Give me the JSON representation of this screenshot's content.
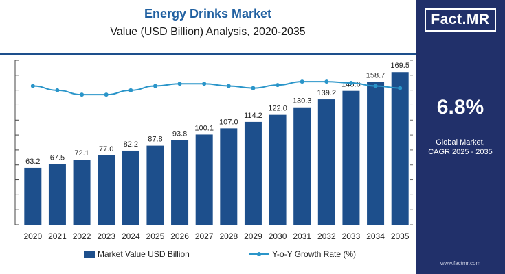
{
  "header": {
    "title": "Energy Drinks Market",
    "subtitle": "Value (USD Billion) Analysis, 2020-2035"
  },
  "brand": {
    "logo": "Fact.MR",
    "cagr_value": "6.8%",
    "cagr_label_line1": "Global Market,",
    "cagr_label_line2": "CAGR 2025 - 2035",
    "website": "www.factmr.com"
  },
  "colors": {
    "bar": "#1d4f8c",
    "line": "#2a95c9",
    "panel": "#21306a",
    "title": "#1f5fa0"
  },
  "chart_data": {
    "type": "bar",
    "title": "Energy Drinks Market",
    "subtitle": "Value (USD Billion) Analysis, 2020-2035",
    "categories": [
      "2020",
      "2021",
      "2022",
      "2023",
      "2024",
      "2025",
      "2026",
      "2027",
      "2028",
      "2029",
      "2030",
      "2031",
      "2032",
      "2033",
      "2034",
      "2035"
    ],
    "series": [
      {
        "name": "Market Value USD Billion",
        "type": "bar",
        "values": [
          63.2,
          67.5,
          72.1,
          77.0,
          82.2,
          87.8,
          93.8,
          100.1,
          107.0,
          114.2,
          122.0,
          130.3,
          139.2,
          148.6,
          158.7,
          169.5
        ],
        "labels": [
          "63.2",
          "67.5",
          "72.1",
          "77.0",
          "82.2",
          "87.8",
          "93.8",
          "100.1",
          "107.0",
          "114.2",
          "122.0",
          "130.3",
          "139.2",
          "148.6",
          "158.7",
          "169.5"
        ]
      },
      {
        "name": "Y-o-Y Growth Rate (%)",
        "type": "line",
        "values": [
          6.9,
          6.8,
          6.7,
          6.7,
          6.8,
          6.9,
          6.95,
          6.95,
          6.9,
          6.85,
          6.92,
          7.0,
          7.0,
          6.97,
          6.9,
          6.85
        ]
      }
    ],
    "ylim": [
      0,
      175
    ],
    "line_ylim": [
      6.2,
      7.3
    ],
    "grid": false,
    "legend": "bottom"
  }
}
